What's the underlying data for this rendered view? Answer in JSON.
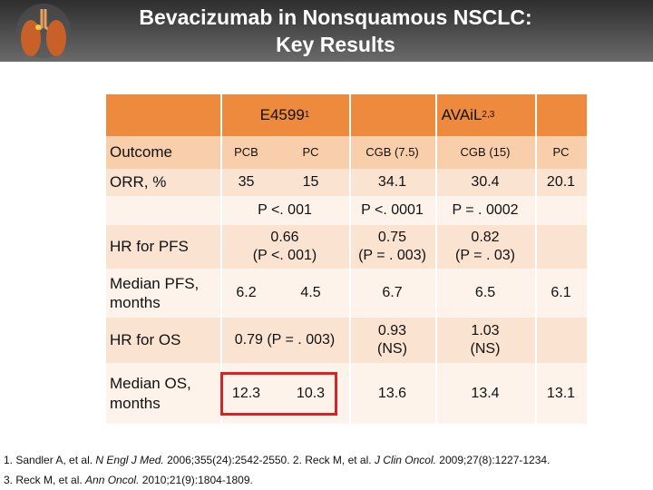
{
  "header": {
    "title": [
      "Bevacizumab in Nonsquamous NSCLC:",
      "Key Results"
    ]
  },
  "table": {
    "groups": [
      {
        "name": "E4599",
        "ref": "1"
      },
      {
        "name": "AVAiL",
        "ref": "2,3"
      }
    ],
    "columns_label": "Outcome",
    "columns": [
      "PCB",
      "PC",
      "CGB (7.5)",
      "CGB (15)",
      "PC"
    ],
    "rows": [
      {
        "label": "ORR, %",
        "e4599": [
          "35",
          "15"
        ],
        "avail": [
          "34.1",
          "30.4",
          "20.1"
        ]
      },
      {
        "label": null,
        "e4599": "P <. 001",
        "avail": [
          "P <. 0001",
          "P = . 0002",
          null
        ]
      },
      {
        "label": "HR for PFS",
        "e4599": "0.66\n(P <. 001)",
        "avail": [
          "0.75\n(P = . 003)",
          "0.82\n(P = . 03)",
          null
        ]
      },
      {
        "label": "Median PFS,\nmonths",
        "e4599": [
          "6.2",
          "4.5"
        ],
        "avail": [
          "6.7",
          "6.5",
          "6.1"
        ]
      },
      {
        "label": "HR for OS",
        "e4599": "0.79 (P = . 003)",
        "avail": [
          "0.93\n(NS)",
          "1.03\n(NS)",
          null
        ]
      },
      {
        "label": "Median OS,\nmonths",
        "e4599": [
          "12.3",
          "10.3"
        ],
        "avail": [
          "13.6",
          "13.4",
          "13.1"
        ],
        "highlight": "e4599"
      }
    ]
  },
  "footnotes": [
    [
      {
        "text": "1. Sandler A, et al. "
      },
      {
        "text": "N Engl J Med.",
        "italic": true
      },
      {
        "text": " 2006;355(24):2542-2550. 2. Reck M, et al. "
      },
      {
        "text": "J Clin Oncol.",
        "italic": true
      },
      {
        "text": " 2009;27(8):1227-1234."
      }
    ],
    [
      {
        "text": "3. Reck M, et al. "
      },
      {
        "text": "Ann Oncol.",
        "italic": true
      },
      {
        "text": " 2010;21(9):1804-1809."
      }
    ]
  ]
}
